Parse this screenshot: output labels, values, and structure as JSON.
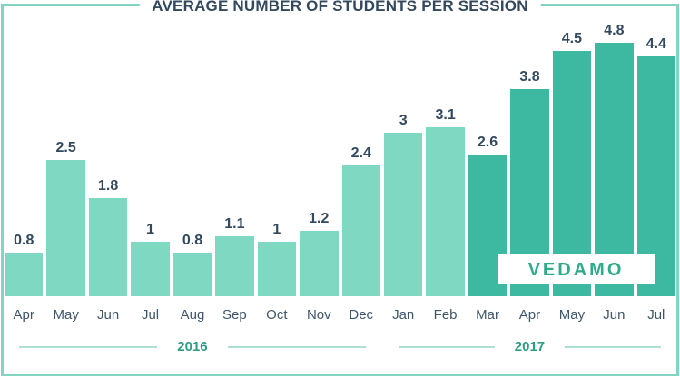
{
  "title": "AVERAGE NUMBER OF STUDENTS PER SESSION",
  "watermark": "VEDAMO",
  "colors": {
    "light_bar": "#7ed8c2",
    "dark_bar": "#3cb9a0",
    "frame": "#82d5c2",
    "title_ink": "#33495e",
    "month_ink": "#3f566b",
    "year_ink": "#2c9d83",
    "year_line": "#addfd3",
    "logo_ink": "#2fab8b"
  },
  "chart_data": {
    "type": "bar",
    "title": "AVERAGE NUMBER OF STUDENTS PER SESSION",
    "categories": [
      "Apr",
      "May",
      "Jun",
      "Jul",
      "Aug",
      "Sep",
      "Oct",
      "Nov",
      "Dec",
      "Jan",
      "Feb",
      "Mar",
      "Apr",
      "May",
      "Jun",
      "Jul"
    ],
    "values": [
      0.8,
      2.5,
      1.8,
      1,
      0.8,
      1.1,
      1,
      1.2,
      2.4,
      3,
      3.1,
      2.6,
      3.8,
      4.5,
      4.8,
      4.4
    ],
    "value_labels": [
      "0.8",
      "2.5",
      "1.8",
      "1",
      "0.8",
      "1.1",
      "1",
      "1.2",
      "2.4",
      "3",
      "3.1",
      "2.6",
      "3.8",
      "4.5",
      "4.8",
      "4.4"
    ],
    "xlabel": "",
    "ylabel": "",
    "ylim": [
      0,
      5
    ],
    "grid": false,
    "legend_position": "none",
    "data_labels_shown": true,
    "dark_series_start_index": 11,
    "year_groups": [
      {
        "label": "2016",
        "month_count": 9
      },
      {
        "label": "2017",
        "month_count": 7
      }
    ]
  }
}
